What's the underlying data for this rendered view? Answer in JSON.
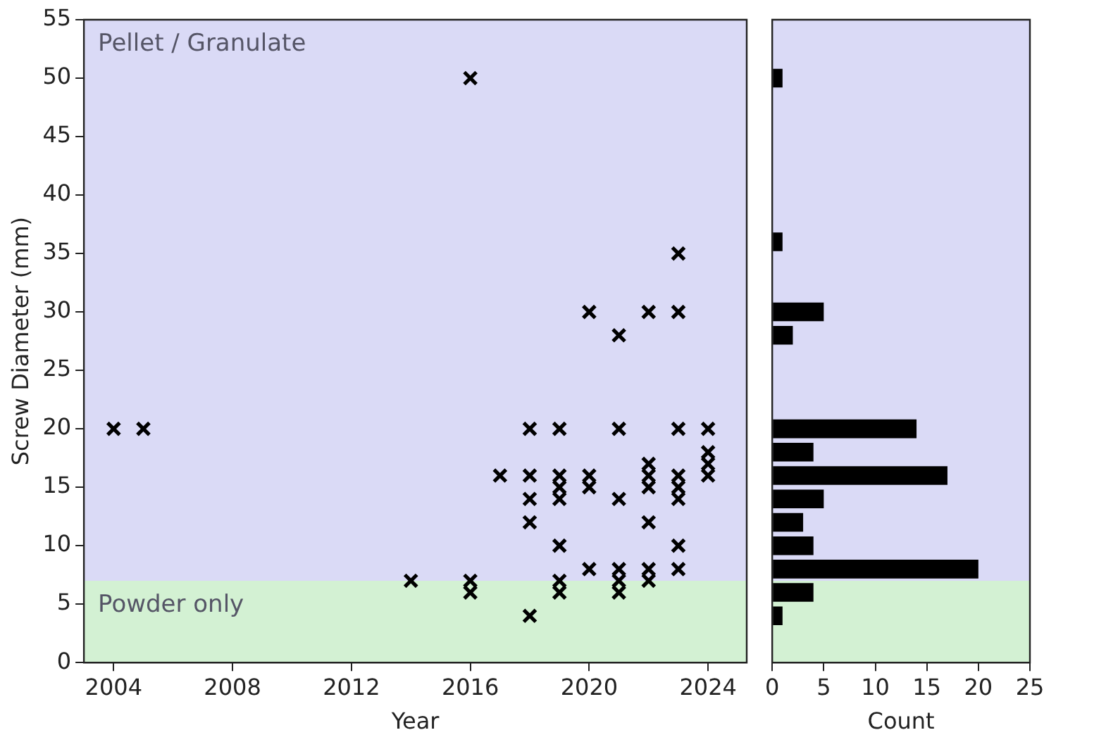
{
  "chart_data": [
    {
      "type": "scatter",
      "xlabel": "Year",
      "ylabel": "Screw Diameter (mm)",
      "color": "#000000",
      "marker": "cross",
      "x": [
        2004,
        2005,
        2014,
        2016,
        2016,
        2016,
        2017,
        2018,
        2018,
        2018,
        2018,
        2018,
        2019,
        2019,
        2019,
        2019,
        2019,
        2019,
        2019,
        2020,
        2020,
        2020,
        2020,
        2021,
        2021,
        2021,
        2021,
        2021,
        2021,
        2022,
        2022,
        2022,
        2022,
        2022,
        2022,
        2022,
        2023,
        2023,
        2023,
        2023,
        2023,
        2023,
        2023,
        2023,
        2024,
        2024,
        2024,
        2024
      ],
      "values": [
        20,
        20,
        7,
        50,
        7,
        6,
        16,
        20,
        16,
        14,
        12,
        4,
        20,
        16,
        15,
        14,
        10,
        7,
        6,
        30,
        16,
        15,
        8,
        28,
        20,
        14,
        8,
        7,
        6,
        30,
        17,
        16,
        15,
        12,
        8,
        7,
        35,
        30,
        20,
        16,
        15,
        14,
        10,
        8,
        20,
        18,
        17,
        16
      ],
      "xlim": [
        2003,
        2025.3
      ],
      "xticks": [
        2004,
        2008,
        2012,
        2016,
        2020,
        2024
      ],
      "ylim": [
        0,
        55
      ],
      "yticks": [
        0,
        5,
        10,
        15,
        20,
        25,
        30,
        35,
        40,
        45,
        50,
        55
      ],
      "bands": [
        {
          "axis": "y",
          "from": 7,
          "to": 55,
          "label": "Pellet / Granulate",
          "color": "#dadaf6"
        },
        {
          "axis": "y",
          "from": 0,
          "to": 7,
          "label": "Powder only",
          "color": "#d3f1d3"
        }
      ]
    },
    {
      "type": "histogram",
      "orientation": "horizontal",
      "xlabel": "Count",
      "color": "#000000",
      "tick_labels": "x",
      "bins": [
        3,
        5,
        7,
        9,
        11,
        13,
        15,
        17,
        19,
        21,
        23,
        25,
        27,
        29,
        31,
        33,
        35,
        37,
        39,
        41,
        43,
        45,
        47,
        49,
        51
      ],
      "values": [
        1,
        4,
        20,
        4,
        3,
        5,
        17,
        4,
        14,
        0,
        0,
        0,
        2,
        5,
        0,
        0,
        1,
        0,
        0,
        0,
        0,
        0,
        0,
        1
      ],
      "xlim": [
        0,
        25
      ],
      "xticks": [
        0,
        5,
        10,
        15,
        20,
        25
      ],
      "ylim": [
        0,
        55
      ],
      "bands": [
        {
          "axis": "y",
          "from": 7,
          "to": 55,
          "color": "#dadaf6"
        },
        {
          "axis": "y",
          "from": 0,
          "to": 7,
          "color": "#d3f1d3"
        }
      ]
    }
  ]
}
